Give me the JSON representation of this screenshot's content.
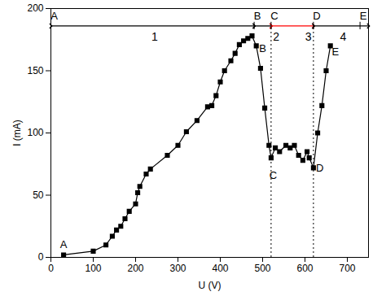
{
  "chart_data": {
    "type": "line",
    "x_label": "U (V)",
    "y_label": "I (mA)",
    "x": [
      30,
      100,
      130,
      145,
      155,
      165,
      175,
      185,
      200,
      205,
      210,
      225,
      235,
      275,
      300,
      320,
      345,
      370,
      380,
      390,
      400,
      410,
      425,
      435,
      445,
      455,
      465,
      475,
      485,
      495,
      505,
      515,
      520,
      530,
      540,
      555,
      565,
      575,
      585,
      595,
      605,
      610,
      620,
      630,
      640,
      650,
      660
    ],
    "values": [
      2,
      5,
      10,
      17,
      22,
      25,
      31,
      37,
      43,
      52,
      57,
      67,
      71,
      82,
      90,
      101,
      110,
      121,
      122,
      130,
      141,
      150,
      158,
      164,
      171,
      174,
      176,
      178,
      170,
      152,
      120,
      90,
      80,
      88,
      85,
      90,
      88,
      90,
      82,
      78,
      85,
      80,
      72,
      100,
      122,
      150,
      170
    ],
    "color": "#000000",
    "marker": "square",
    "line_style": "solid",
    "xlim": [
      0,
      750
    ],
    "ylim": [
      0,
      200
    ],
    "xticks": [
      0,
      100,
      200,
      300,
      400,
      500,
      600,
      700
    ],
    "yticks": [
      0,
      50,
      100,
      150,
      200
    ],
    "point_labels": [
      {
        "text": "A",
        "x": 30,
        "y": 10
      },
      {
        "text": "B",
        "x": 500,
        "y": 168
      },
      {
        "text": "C",
        "x": 525,
        "y": 66
      },
      {
        "text": "D",
        "x": 635,
        "y": 72
      },
      {
        "text": "E",
        "x": 672,
        "y": 165
      }
    ],
    "stage_markers": [
      {
        "text": "A",
        "x": 0
      },
      {
        "text": "B",
        "x": 480
      },
      {
        "text": "C",
        "x": 520
      },
      {
        "text": "D",
        "x": 620
      },
      {
        "text": "E",
        "x": 730
      }
    ],
    "stage_segments": [
      {
        "from": 0,
        "to": 480,
        "color": "#000000"
      },
      {
        "from": 480,
        "to": 520,
        "color": "#000000"
      },
      {
        "from": 520,
        "to": 620,
        "color": "#ff0000"
      },
      {
        "from": 620,
        "to": 750,
        "color": "#000000"
      }
    ],
    "stage_labels": [
      {
        "text": "1",
        "x": 245
      },
      {
        "text": "2",
        "x": 532
      },
      {
        "text": "3",
        "x": 608
      },
      {
        "text": "4",
        "x": 690
      }
    ],
    "dividers": [
      520,
      620
    ]
  }
}
